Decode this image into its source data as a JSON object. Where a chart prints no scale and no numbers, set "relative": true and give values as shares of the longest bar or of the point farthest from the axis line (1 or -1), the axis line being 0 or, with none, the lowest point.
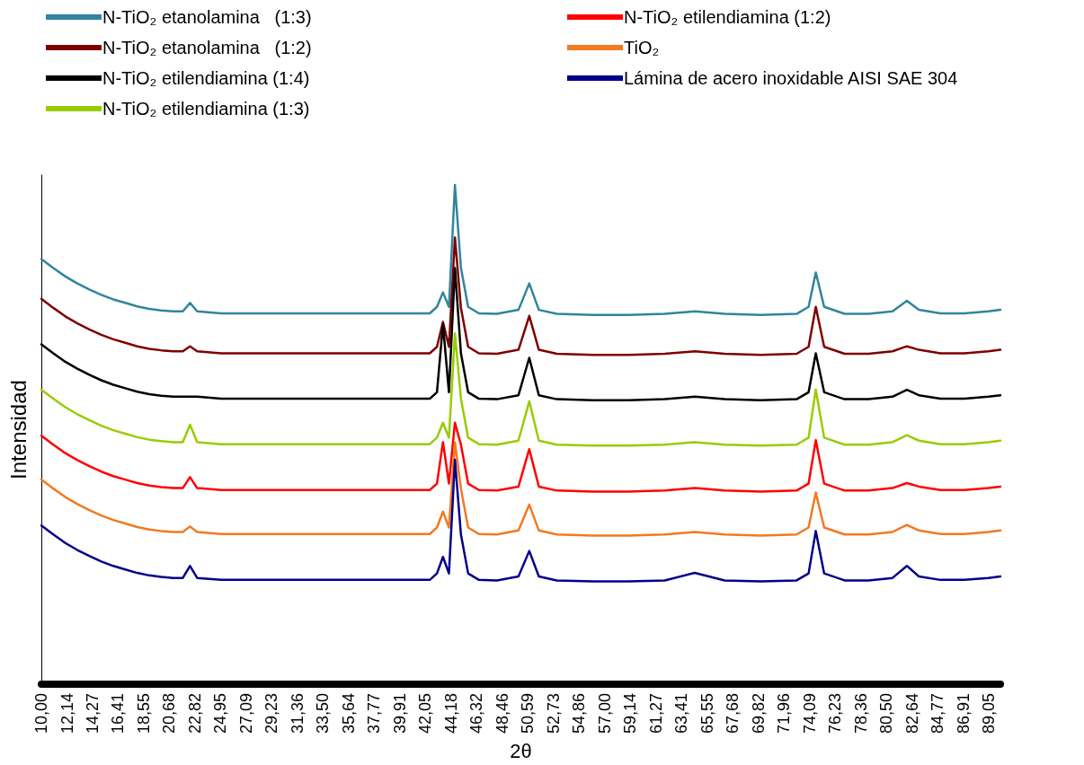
{
  "chart_data": {
    "type": "line",
    "relative": true,
    "xlabel": "2θ",
    "ylabel": "Intensidad",
    "legend": "top",
    "grid": false,
    "marker": "none",
    "line_style": "solid",
    "xlim": [
      10,
      90
    ],
    "xticks": [
      {
        "value": 10,
        "label": "10,00"
      },
      {
        "value": 12.14,
        "label": "12,14"
      },
      {
        "value": 14.27,
        "label": "14,27"
      },
      {
        "value": 16.41,
        "label": "16,41"
      },
      {
        "value": 18.55,
        "label": "18,55"
      },
      {
        "value": 20.68,
        "label": "20,68"
      },
      {
        "value": 22.82,
        "label": "22,82"
      },
      {
        "value": 24.95,
        "label": "24,95"
      },
      {
        "value": 27.09,
        "label": "27,09"
      },
      {
        "value": 29.23,
        "label": "29,23"
      },
      {
        "value": 31.36,
        "label": "31,36"
      },
      {
        "value": 33.5,
        "label": "33,50"
      },
      {
        "value": 35.64,
        "label": "35,64"
      },
      {
        "value": 37.77,
        "label": "37,77"
      },
      {
        "value": 39.91,
        "label": "39,91"
      },
      {
        "value": 42.05,
        "label": "42,05"
      },
      {
        "value": 44.18,
        "label": "44,18"
      },
      {
        "value": 46.32,
        "label": "46,32"
      },
      {
        "value": 48.46,
        "label": "48,46"
      },
      {
        "value": 50.59,
        "label": "50,59"
      },
      {
        "value": 52.73,
        "label": "52,73"
      },
      {
        "value": 54.86,
        "label": "54,86"
      },
      {
        "value": 57,
        "label": "57,00"
      },
      {
        "value": 59.14,
        "label": "59,14"
      },
      {
        "value": 61.27,
        "label": "61,27"
      },
      {
        "value": 63.41,
        "label": "63,41"
      },
      {
        "value": 65.55,
        "label": "65,55"
      },
      {
        "value": 67.68,
        "label": "67,68"
      },
      {
        "value": 69.82,
        "label": "69,82"
      },
      {
        "value": 71.96,
        "label": "71,96"
      },
      {
        "value": 74.09,
        "label": "74,09"
      },
      {
        "value": 76.23,
        "label": "76,23"
      },
      {
        "value": 78.36,
        "label": "78,36"
      },
      {
        "value": 80.5,
        "label": "80,50"
      },
      {
        "value": 82.64,
        "label": "82,64"
      },
      {
        "value": 84.77,
        "label": "84,77"
      },
      {
        "value": 86.91,
        "label": "86,91"
      },
      {
        "value": 89.05,
        "label": "89,05"
      }
    ],
    "x": [
      10,
      11,
      12,
      13,
      14,
      15,
      16,
      17,
      18,
      19,
      20,
      21,
      21.8,
      22.4,
      23,
      25,
      27,
      29,
      31,
      33,
      35,
      37,
      39,
      41,
      42.4,
      43.0,
      43.5,
      44.0,
      44.5,
      45.0,
      45.6,
      46.5,
      48,
      49.8,
      50.7,
      51.5,
      53,
      56,
      59,
      62,
      64.5,
      67,
      70,
      73,
      74.0,
      74.6,
      75.3,
      77,
      79,
      81,
      82.2,
      83.2,
      85,
      87,
      89,
      90
    ],
    "series": [
      {
        "name": "N-TiO₂ etanolamina   (1:3)",
        "color": "#31859c",
        "values": [
          0.852,
          0.834,
          0.817,
          0.803,
          0.791,
          0.78,
          0.771,
          0.764,
          0.757,
          0.752,
          0.749,
          0.747,
          0.747,
          0.764,
          0.747,
          0.743,
          0.743,
          0.743,
          0.743,
          0.743,
          0.743,
          0.743,
          0.743,
          0.743,
          0.743,
          0.756,
          0.785,
          0.756,
          1.0,
          0.834,
          0.756,
          0.743,
          0.742,
          0.75,
          0.803,
          0.75,
          0.742,
          0.74,
          0.74,
          0.742,
          0.747,
          0.742,
          0.74,
          0.742,
          0.756,
          0.825,
          0.756,
          0.742,
          0.742,
          0.747,
          0.768,
          0.75,
          0.743,
          0.743,
          0.747,
          0.75
        ]
      },
      {
        "name": "N-TiO₂ etilendiamina (1:2)",
        "color": "#ff0000",
        "values": [
          0.498,
          0.48,
          0.463,
          0.449,
          0.437,
          0.426,
          0.417,
          0.41,
          0.403,
          0.398,
          0.395,
          0.393,
          0.393,
          0.415,
          0.393,
          0.389,
          0.389,
          0.389,
          0.389,
          0.389,
          0.389,
          0.389,
          0.389,
          0.389,
          0.389,
          0.402,
          0.485,
          0.402,
          0.524,
          0.48,
          0.402,
          0.389,
          0.388,
          0.396,
          0.471,
          0.396,
          0.388,
          0.386,
          0.386,
          0.388,
          0.393,
          0.388,
          0.386,
          0.388,
          0.402,
          0.489,
          0.402,
          0.388,
          0.388,
          0.393,
          0.403,
          0.396,
          0.389,
          0.389,
          0.393,
          0.396
        ]
      },
      {
        "name": "N-TiO₂ etanolamina   (1:2)",
        "color": "#7f0000",
        "values": [
          0.772,
          0.754,
          0.737,
          0.723,
          0.711,
          0.7,
          0.691,
          0.684,
          0.677,
          0.672,
          0.669,
          0.667,
          0.667,
          0.677,
          0.667,
          0.663,
          0.663,
          0.663,
          0.663,
          0.663,
          0.663,
          0.663,
          0.663,
          0.663,
          0.663,
          0.676,
          0.726,
          0.676,
          0.895,
          0.754,
          0.676,
          0.663,
          0.662,
          0.67,
          0.738,
          0.67,
          0.662,
          0.66,
          0.66,
          0.662,
          0.667,
          0.662,
          0.66,
          0.662,
          0.676,
          0.756,
          0.676,
          0.662,
          0.662,
          0.667,
          0.677,
          0.67,
          0.663,
          0.663,
          0.667,
          0.67
        ]
      },
      {
        "name": "TiO₂",
        "color": "#f47920",
        "values": [
          0.41,
          0.392,
          0.375,
          0.361,
          0.349,
          0.338,
          0.329,
          0.322,
          0.315,
          0.31,
          0.307,
          0.305,
          0.305,
          0.316,
          0.305,
          0.301,
          0.301,
          0.301,
          0.301,
          0.301,
          0.301,
          0.301,
          0.301,
          0.301,
          0.301,
          0.314,
          0.346,
          0.314,
          0.485,
          0.392,
          0.314,
          0.301,
          0.3,
          0.308,
          0.36,
          0.308,
          0.3,
          0.298,
          0.298,
          0.3,
          0.305,
          0.3,
          0.298,
          0.3,
          0.314,
          0.384,
          0.314,
          0.3,
          0.3,
          0.305,
          0.319,
          0.308,
          0.301,
          0.301,
          0.305,
          0.308
        ]
      },
      {
        "name": "N-TiO₂ etilendiamina (1:4)",
        "color": "#000000",
        "values": [
          0.681,
          0.663,
          0.646,
          0.632,
          0.62,
          0.609,
          0.6,
          0.593,
          0.586,
          0.581,
          0.578,
          0.576,
          0.576,
          0.576,
          0.576,
          0.572,
          0.572,
          0.572,
          0.572,
          0.572,
          0.572,
          0.572,
          0.572,
          0.572,
          0.572,
          0.585,
          0.721,
          0.585,
          0.834,
          0.663,
          0.585,
          0.572,
          0.571,
          0.579,
          0.654,
          0.579,
          0.571,
          0.569,
          0.569,
          0.571,
          0.576,
          0.571,
          0.569,
          0.571,
          0.585,
          0.663,
          0.585,
          0.571,
          0.571,
          0.576,
          0.59,
          0.579,
          0.572,
          0.572,
          0.576,
          0.579
        ]
      },
      {
        "name": "Lámina de acero inoxidable AISI SAE 304",
        "color": "#00008b",
        "values": [
          0.318,
          0.3,
          0.283,
          0.269,
          0.257,
          0.246,
          0.237,
          0.23,
          0.223,
          0.218,
          0.215,
          0.213,
          0.213,
          0.237,
          0.213,
          0.209,
          0.209,
          0.209,
          0.209,
          0.209,
          0.209,
          0.209,
          0.209,
          0.209,
          0.209,
          0.222,
          0.255,
          0.222,
          0.45,
          0.3,
          0.222,
          0.209,
          0.208,
          0.216,
          0.267,
          0.216,
          0.208,
          0.206,
          0.206,
          0.208,
          0.223,
          0.208,
          0.206,
          0.208,
          0.222,
          0.307,
          0.222,
          0.208,
          0.208,
          0.213,
          0.237,
          0.216,
          0.209,
          0.209,
          0.213,
          0.216
        ]
      },
      {
        "name": "N-TiO₂ etilendiamina (1:3)",
        "color": "#99cc00",
        "values": [
          0.59,
          0.572,
          0.555,
          0.541,
          0.529,
          0.518,
          0.509,
          0.502,
          0.495,
          0.49,
          0.487,
          0.485,
          0.485,
          0.52,
          0.485,
          0.481,
          0.481,
          0.481,
          0.481,
          0.481,
          0.481,
          0.481,
          0.481,
          0.481,
          0.481,
          0.494,
          0.524,
          0.494,
          0.703,
          0.572,
          0.494,
          0.481,
          0.48,
          0.488,
          0.567,
          0.488,
          0.48,
          0.478,
          0.478,
          0.48,
          0.485,
          0.48,
          0.478,
          0.48,
          0.494,
          0.59,
          0.494,
          0.48,
          0.48,
          0.485,
          0.499,
          0.488,
          0.481,
          0.481,
          0.485,
          0.488
        ]
      }
    ]
  }
}
